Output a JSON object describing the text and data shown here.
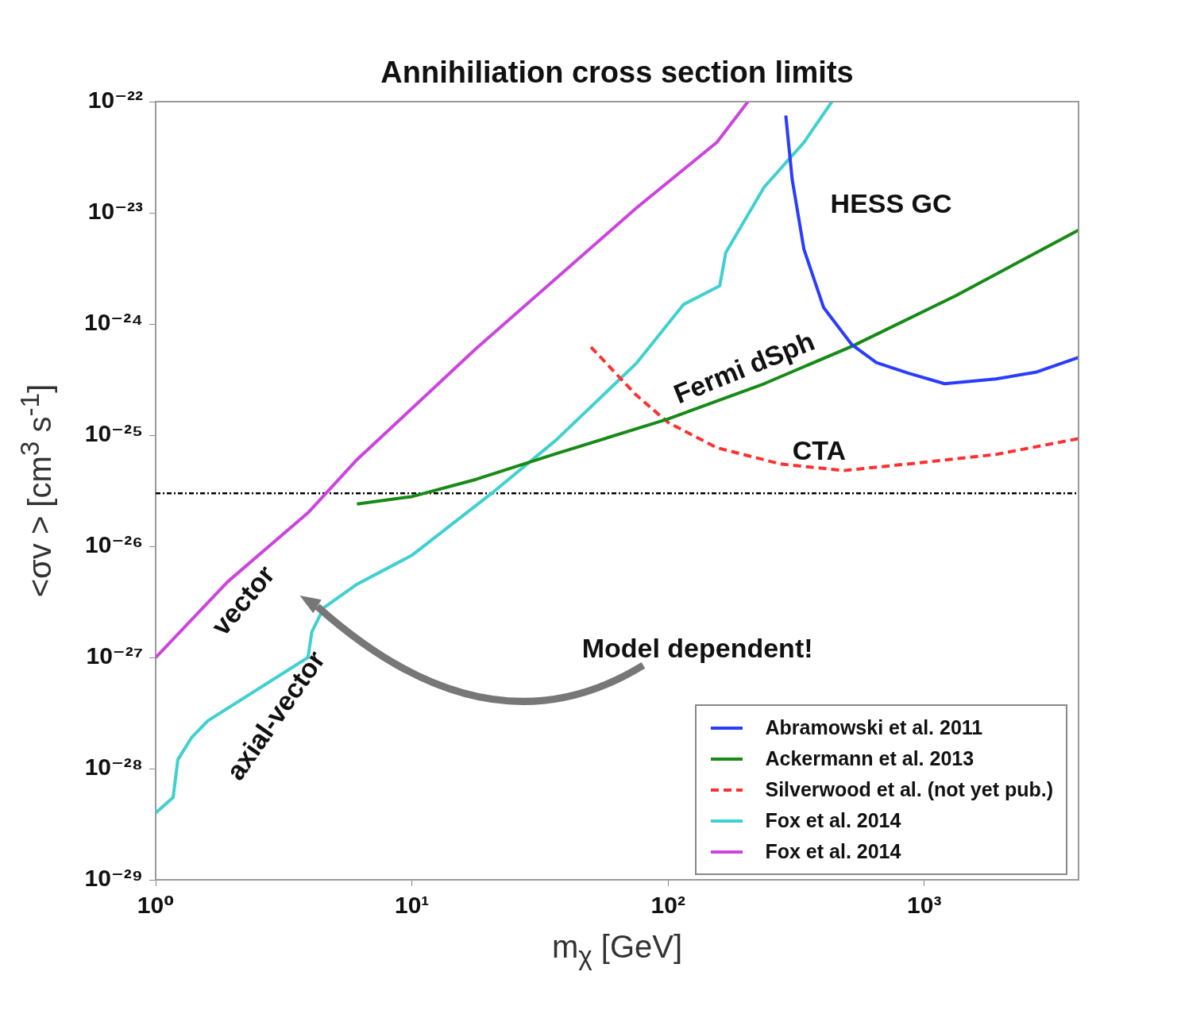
{
  "chart_data": {
    "type": "line",
    "title": "Annihiliation cross section limits",
    "xlabel": "m$_{χ}$ [GeV]",
    "ylabel": "<σv > [cm$^{3}$ s$^{-1}$]",
    "log": "xy",
    "grid": false,
    "legend": "bottom right",
    "marker": "none",
    "xlim": [
      1,
      4000
    ],
    "xticks": [
      {
        "value": 1,
        "label": "10⁰"
      },
      {
        "value": 10,
        "label": "10¹"
      },
      {
        "value": 100,
        "label": "10²"
      },
      {
        "value": 1000,
        "label": "10³"
      }
    ],
    "ylim": [
      1e-29,
      1e-22
    ],
    "yticks": [
      {
        "value": 1e-29,
        "label": "10⁻²⁹"
      },
      {
        "value": 1e-28,
        "label": "10⁻²⁸"
      },
      {
        "value": 1e-27,
        "label": "10⁻²⁷"
      },
      {
        "value": 1e-26,
        "label": "10⁻²⁶"
      },
      {
        "value": 1e-25,
        "label": "10⁻²⁵"
      },
      {
        "value": 1e-24,
        "label": "10⁻²⁴"
      },
      {
        "value": 1e-23,
        "label": "10⁻²³"
      },
      {
        "value": 1e-22,
        "label": "10⁻²²"
      }
    ],
    "series": [
      {
        "name": "Abramowski et al. 2011",
        "color": "#2a3cff",
        "line_style": "solid",
        "x": [
          288,
          305,
          339,
          405,
          522,
          650,
          870,
          1200,
          1900,
          2750,
          4000
        ],
        "values": [
          7.5e-23,
          2e-23,
          4.7e-24,
          1.4e-24,
          6.5e-25,
          4.5e-25,
          3.6e-25,
          2.9e-25,
          3.2e-25,
          3.7e-25,
          5e-25
        ]
      },
      {
        "name": "Ackermann et al. 2013",
        "color": "#178a17",
        "line_style": "solid",
        "x": [
          6.1,
          10,
          17.8,
          36.5,
          100,
          237,
          522,
          1330,
          4000
        ],
        "values": [
          2.4e-26,
          2.8e-26,
          4e-26,
          6.8e-26,
          1.4e-25,
          2.9e-25,
          6.3e-25,
          1.8e-24,
          7e-24
        ]
      },
      {
        "name": "Silverwood et al. (not yet pub.)",
        "color": "#ff3030",
        "line_style": "dashed",
        "x": [
          50,
          75,
          100,
          155,
          275,
          485,
          930,
          1900,
          4000
        ],
        "values": [
          6.2e-25,
          2.3e-25,
          1.3e-25,
          7.7e-26,
          5.5e-26,
          4.8e-26,
          5.6e-26,
          6.7e-26,
          9.3e-26
        ]
      },
      {
        "name": "Fox et al. 2014",
        "color": "#3fd0d0",
        "line_style": "solid",
        "x": [
          1,
          1.17,
          1.22,
          1.38,
          1.6,
          3.93,
          4.07,
          4.53,
          6.05,
          10,
          20.5,
          36.5,
          75,
          115,
          159,
          168,
          237,
          339,
          436
        ],
        "values": [
          4e-29,
          5.5e-29,
          1.2e-28,
          1.9e-28,
          2.7e-28,
          1e-27,
          1.7e-27,
          2.8e-27,
          4.5e-27,
          8.3e-27,
          3e-26,
          9e-26,
          4.4e-25,
          1.5e-24,
          2.2e-24,
          4.4e-24,
          1.7e-23,
          4.3e-23,
          1e-22
        ]
      },
      {
        "name": "Fox et al. 2014",
        "color": "#cc44dd",
        "line_style": "solid",
        "x": [
          1,
          1.91,
          3.93,
          6.05,
          17.8,
          75,
          155,
          205
        ],
        "values": [
          1e-27,
          4.8e-27,
          2e-26,
          5.9e-26,
          6e-25,
          1.1e-23,
          4.3e-23,
          1e-22
        ]
      }
    ],
    "ref_lines": [
      {
        "axis": "y",
        "value": 3e-26,
        "color": "#000000",
        "line_style": "dotted"
      }
    ],
    "annotations": [
      "HESS GC",
      "Fermi dSph",
      "CTA",
      "vector",
      "axial-vector",
      "Model dependent!"
    ]
  }
}
